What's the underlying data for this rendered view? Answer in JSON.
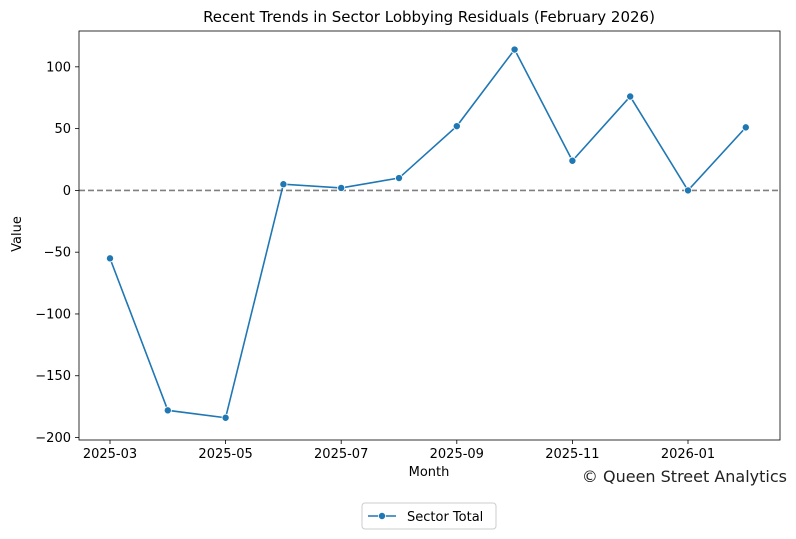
{
  "chart_data": {
    "type": "line",
    "title": "Recent Trends in Sector Lobbying Residuals (February 2026)",
    "xlabel": "Month",
    "ylabel": "Value",
    "ylim": [
      -202,
      129
    ],
    "y_ticks": [
      100,
      50,
      0,
      -50,
      -100,
      -150,
      -200
    ],
    "y_tick_labels": [
      "100",
      "50",
      "0",
      "−50",
      "−100",
      "−150",
      "−200"
    ],
    "x": [
      "2025-03",
      "2025-04",
      "2025-05",
      "2025-06",
      "2025-07",
      "2025-08",
      "2025-09",
      "2025-10",
      "2025-11",
      "2025-12",
      "2026-01",
      "2026-02"
    ],
    "x_tick_labels": [
      "2025-03",
      "2025-05",
      "2025-07",
      "2025-09",
      "2025-11",
      "2026-01"
    ],
    "series": [
      {
        "name": "Sector Total",
        "values": [
          -55,
          -178,
          -184,
          5,
          2,
          10,
          52,
          114,
          24,
          76,
          0,
          51
        ],
        "color": "#1f77b4",
        "marker": "circle"
      }
    ],
    "reference_line": {
      "y": 0,
      "style": "dashed",
      "color": "#808080"
    },
    "grid": false,
    "legend_position": "bottom-center"
  },
  "watermark": "© Queen Street Analytics"
}
